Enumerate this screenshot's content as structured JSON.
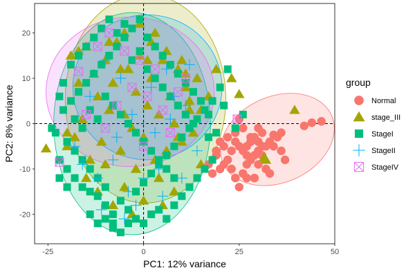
{
  "chart_data": {
    "type": "scatter",
    "xlabel": "PC1: 12% variance",
    "ylabel": "PC2: 8% variance",
    "xlim": [
      -28.5,
      50
    ],
    "ylim": [
      -26.5,
      26.5
    ],
    "xticks": [
      -25,
      0,
      25,
      50
    ],
    "yticks": [
      -20,
      -10,
      0,
      10,
      20
    ],
    "reference_lines": {
      "x": 0,
      "y": 0,
      "style": "dashed"
    },
    "grid": false,
    "legend": {
      "title": "group",
      "position": "right",
      "entries": [
        {
          "name": "Normal",
          "color": "#F8766D",
          "shape": "circle"
        },
        {
          "name": "stage_III",
          "color": "#A3A500",
          "shape": "triangle"
        },
        {
          "name": "StageI",
          "color": "#00BF7D",
          "shape": "square"
        },
        {
          "name": "StageII",
          "color": "#00B0F6",
          "shape": "plus"
        },
        {
          "name": "StageIV",
          "color": "#E76BF3",
          "shape": "square-x"
        }
      ]
    },
    "ellipses": [
      {
        "group": "stage_III",
        "cx": 0.5,
        "cy": 5.5,
        "rx": 21,
        "ry": 23,
        "angle": 0
      },
      {
        "group": "StageI",
        "cx": -3,
        "cy": 0,
        "rx": 20.5,
        "ry": 24.5,
        "angle": 0
      },
      {
        "group": "StageII",
        "cx": 1,
        "cy": 8,
        "rx": 19.5,
        "ry": 16,
        "angle": 0
      },
      {
        "group": "StageIV",
        "cx": -3.5,
        "cy": 7,
        "rx": 22,
        "ry": 16.5,
        "angle": 0
      },
      {
        "group": "Normal",
        "cx": 35,
        "cy": -3.5,
        "rx": 15.5,
        "ry": 9.5,
        "angle": -24
      }
    ],
    "series": [
      {
        "name": "Normal",
        "points": [
          [
            46.5,
            0.5
          ],
          [
            44,
            0.2
          ],
          [
            42,
            -0.5
          ],
          [
            36,
            -2
          ],
          [
            35,
            -3
          ],
          [
            34,
            -2.5
          ],
          [
            33,
            -4
          ],
          [
            32,
            -5
          ],
          [
            31,
            -2
          ],
          [
            30,
            -1
          ],
          [
            29,
            -3
          ],
          [
            28,
            -4
          ],
          [
            27,
            -5
          ],
          [
            26,
            -6
          ],
          [
            25,
            -5
          ],
          [
            24,
            -4
          ],
          [
            23,
            -6
          ],
          [
            22,
            -8
          ],
          [
            21,
            -9
          ],
          [
            20,
            -10
          ],
          [
            19,
            -7
          ],
          [
            18,
            -11
          ],
          [
            17,
            -9
          ],
          [
            31,
            -5
          ],
          [
            30,
            -6
          ],
          [
            29,
            -7
          ],
          [
            28,
            -8
          ],
          [
            27,
            -9
          ],
          [
            26,
            -11
          ],
          [
            25,
            -14
          ],
          [
            24,
            -12
          ],
          [
            34,
            -5
          ],
          [
            36,
            -6
          ],
          [
            37,
            -8
          ],
          [
            30,
            -9
          ],
          [
            32,
            -10
          ],
          [
            33,
            -11
          ],
          [
            29,
            -12
          ],
          [
            23,
            -10
          ],
          [
            28,
            -3
          ],
          [
            30,
            -4
          ],
          [
            31,
            -7
          ],
          [
            27,
            -7
          ],
          [
            24,
            -2
          ],
          [
            21,
            -5
          ],
          [
            22,
            -3
          ],
          [
            26,
            -1
          ],
          [
            25,
            1
          ],
          [
            20,
            -4
          ],
          [
            19,
            -6
          ],
          [
            27,
            -12
          ]
        ]
      },
      {
        "name": "stage_III",
        "points": [
          [
            -25.5,
            -5.5
          ],
          [
            39.5,
            3
          ],
          [
            32,
            -8
          ],
          [
            31.5,
            -7.5
          ],
          [
            25,
            6.5
          ],
          [
            23,
            10
          ],
          [
            19,
            12
          ],
          [
            17,
            6
          ],
          [
            15,
            3
          ],
          [
            14,
            10
          ],
          [
            13,
            -2
          ],
          [
            12,
            5
          ],
          [
            11,
            8
          ],
          [
            10,
            -4
          ],
          [
            9,
            12
          ],
          [
            8,
            0
          ],
          [
            7,
            6
          ],
          [
            6,
            -6
          ],
          [
            5,
            14
          ],
          [
            4,
            2
          ],
          [
            3,
            -8
          ],
          [
            2,
            10
          ],
          [
            1,
            4
          ],
          [
            0,
            -3
          ],
          [
            -1,
            15
          ],
          [
            -2,
            7
          ],
          [
            -3,
            -1
          ],
          [
            -4,
            12
          ],
          [
            -5,
            2
          ],
          [
            -6,
            -6
          ],
          [
            -7,
            18
          ],
          [
            -8,
            9
          ],
          [
            -9,
            3
          ],
          [
            -10,
            14
          ],
          [
            -11,
            -4
          ],
          [
            -12,
            6
          ],
          [
            -13,
            11
          ],
          [
            -14,
            -8
          ],
          [
            -15,
            17
          ],
          [
            -16,
            1
          ],
          [
            -17,
            9
          ],
          [
            -18,
            -3
          ],
          [
            -19,
            15
          ],
          [
            -20,
            -5
          ],
          [
            -15,
            -12
          ],
          [
            -10,
            -9
          ],
          [
            -5,
            -14
          ],
          [
            0,
            -17
          ],
          [
            5,
            -18
          ],
          [
            8,
            -15
          ],
          [
            -3,
            -20
          ],
          [
            -8,
            -18
          ],
          [
            3,
            20
          ],
          [
            -1,
            22
          ],
          [
            2,
            18
          ],
          [
            -5,
            20
          ],
          [
            6,
            16
          ],
          [
            10,
            14
          ],
          [
            12,
            3
          ],
          [
            15,
            -9
          ],
          [
            -12,
            -15
          ],
          [
            -2,
            -10
          ],
          [
            4,
            -12
          ],
          [
            9,
            -3
          ],
          [
            11,
            11
          ],
          [
            -6,
            12
          ],
          [
            1,
            14
          ],
          [
            -9,
            18
          ],
          [
            -17,
            16
          ],
          [
            -20,
            -2
          ]
        ]
      },
      {
        "name": "StageI",
        "points": [
          [
            -22,
            -8
          ],
          [
            -20,
            -10
          ],
          [
            -18,
            -12
          ],
          [
            -16,
            -14
          ],
          [
            -14,
            -15
          ],
          [
            -12,
            -16
          ],
          [
            -10,
            -18
          ],
          [
            -8,
            -20
          ],
          [
            -6,
            -17
          ],
          [
            -4,
            -19
          ],
          [
            -2,
            -15
          ],
          [
            0,
            -13
          ],
          [
            2,
            -11
          ],
          [
            4,
            -9
          ],
          [
            6,
            -7
          ],
          [
            8,
            -5
          ],
          [
            10,
            -3
          ],
          [
            12,
            -1
          ],
          [
            14,
            1
          ],
          [
            16,
            3
          ],
          [
            18,
            5
          ],
          [
            20,
            8
          ],
          [
            22,
            12
          ],
          [
            -21,
            3
          ],
          [
            -19,
            5
          ],
          [
            -17,
            7
          ],
          [
            -15,
            9
          ],
          [
            -13,
            11
          ],
          [
            -11,
            13
          ],
          [
            -9,
            15
          ],
          [
            -7,
            17
          ],
          [
            -5,
            19
          ],
          [
            -3,
            21
          ],
          [
            -1,
            23
          ],
          [
            1,
            19
          ],
          [
            3,
            17
          ],
          [
            5,
            15
          ],
          [
            7,
            13
          ],
          [
            9,
            11
          ],
          [
            11,
            9
          ],
          [
            13,
            7
          ],
          [
            15,
            5
          ],
          [
            17,
            2
          ],
          [
            19,
            -2
          ],
          [
            -23,
            -2
          ],
          [
            -20,
            -4
          ],
          [
            -18,
            -6
          ],
          [
            -16,
            -8
          ],
          [
            -14,
            -10
          ],
          [
            -12,
            -12
          ],
          [
            -10,
            -14
          ],
          [
            -8,
            -22
          ],
          [
            -6,
            -24
          ],
          [
            -4,
            -22
          ],
          [
            -2,
            -21
          ],
          [
            0,
            -22
          ],
          [
            2,
            -20
          ],
          [
            4,
            -19
          ],
          [
            6,
            -21
          ],
          [
            8,
            -18
          ],
          [
            10,
            -16
          ],
          [
            12,
            -14
          ],
          [
            14,
            -12
          ],
          [
            16,
            -10
          ],
          [
            18,
            -8
          ],
          [
            -24,
            -1
          ],
          [
            -22,
            6
          ],
          [
            -21,
            9
          ],
          [
            -19,
            13
          ],
          [
            -17,
            15
          ],
          [
            -15,
            17
          ],
          [
            -13,
            19
          ],
          [
            -11,
            21
          ],
          [
            -9,
            23
          ],
          [
            -7,
            20
          ],
          [
            -5,
            22
          ],
          [
            -3,
            14
          ],
          [
            -1,
            16
          ],
          [
            1,
            12
          ],
          [
            3,
            10
          ],
          [
            5,
            8
          ],
          [
            7,
            6
          ],
          [
            9,
            4
          ],
          [
            11,
            2
          ],
          [
            13,
            0
          ],
          [
            -10,
            6
          ],
          [
            -8,
            4
          ],
          [
            -6,
            2
          ],
          [
            -4,
            0
          ],
          [
            -2,
            -2
          ],
          [
            0,
            -4
          ],
          [
            2,
            -6
          ],
          [
            4,
            -8
          ],
          [
            6,
            -10
          ],
          [
            8,
            -12
          ],
          [
            -12,
            1
          ],
          [
            -14,
            3
          ],
          [
            -16,
            -1
          ],
          [
            -18,
            1
          ],
          [
            -20,
            -14
          ],
          [
            -22,
            -12
          ],
          [
            -14,
            -20
          ],
          [
            -12,
            -22
          ],
          [
            -10,
            -21
          ],
          [
            -8,
            -23
          ],
          [
            26,
            2
          ],
          [
            24,
            -1
          ],
          [
            21,
            4
          ],
          [
            17,
            -3
          ]
        ]
      },
      {
        "name": "StageII",
        "points": [
          [
            -18,
            -5
          ],
          [
            -12,
            -12
          ],
          [
            -8,
            -8
          ],
          [
            -4,
            -15
          ],
          [
            0,
            -12
          ],
          [
            4,
            -10
          ],
          [
            -2,
            -18
          ],
          [
            2,
            8
          ],
          [
            -6,
            10
          ],
          [
            6,
            12
          ],
          [
            8,
            6
          ],
          [
            -10,
            14
          ],
          [
            -3,
            2
          ],
          [
            3,
            -2
          ],
          [
            -7,
            -3
          ],
          [
            7,
            1
          ],
          [
            11,
            4
          ],
          [
            -14,
            6
          ],
          [
            -16,
            -9
          ],
          [
            -11,
            -19
          ],
          [
            10,
            -12
          ],
          [
            14,
            -6
          ],
          [
            12,
            13
          ],
          [
            5,
            -16
          ],
          [
            -5,
            -21
          ]
        ]
      },
      {
        "name": "StageIV",
        "points": [
          [
            -22,
            -8.5
          ],
          [
            -17,
            11.5
          ],
          [
            -12,
            17
          ],
          [
            -9,
            20
          ],
          [
            -5,
            16
          ],
          [
            -1,
            14
          ],
          [
            3,
            12
          ],
          [
            -3,
            8
          ],
          [
            1,
            6
          ],
          [
            -7,
            4
          ],
          [
            5,
            3
          ],
          [
            9,
            7
          ],
          [
            11,
            10
          ],
          [
            -15,
            2
          ],
          [
            7,
            -2
          ],
          [
            -10,
            -1
          ],
          [
            0,
            -5
          ],
          [
            24.5,
            1
          ]
        ]
      }
    ]
  }
}
